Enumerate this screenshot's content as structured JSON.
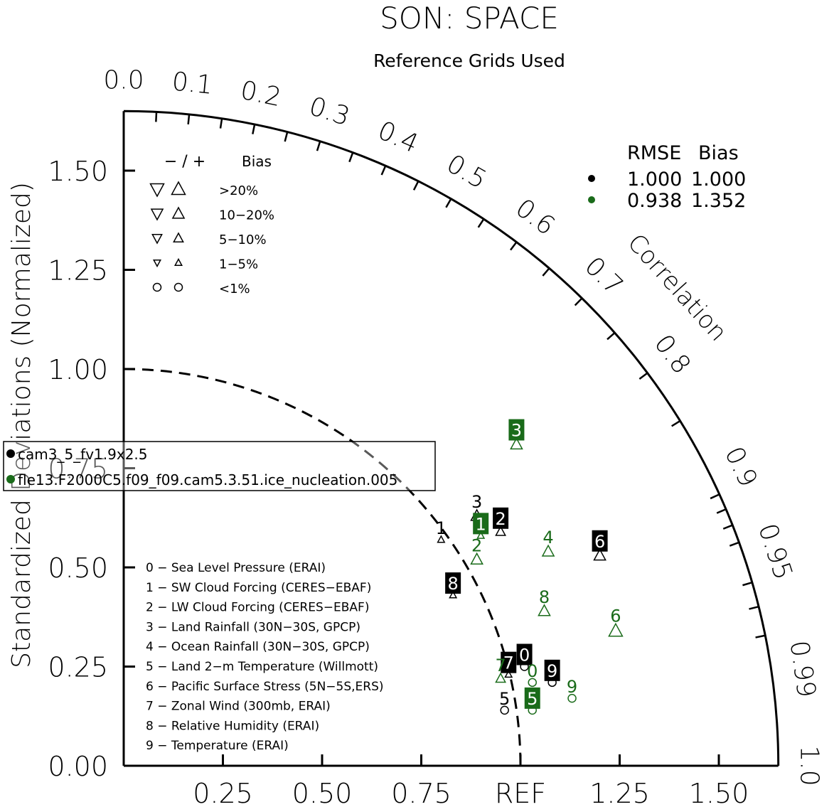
{
  "chart_data": {
    "type": "scatter",
    "subtype": "taylor-diagram",
    "title": "SON: SPACE",
    "subtitle": "Reference Grids Used",
    "ylabel": "Standardized Deviations (Normalized)",
    "arc_label": "Correlation",
    "ref_label": "REF",
    "x_ticks": [
      "0.25",
      "0.50",
      "0.75",
      "REF",
      "1.25",
      "1.50"
    ],
    "y_ticks": [
      "0.00",
      "0.25",
      "0.50",
      "0.75",
      "1.00",
      "1.25",
      "1.50"
    ],
    "corr_ticks": [
      "0.0",
      "0.1",
      "0.2",
      "0.3",
      "0.4",
      "0.5",
      "0.6",
      "0.7",
      "0.8",
      "0.9",
      "0.95",
      "0.99",
      "1.0"
    ],
    "std_max": 1.65,
    "grid": false,
    "bias_legend": {
      "header_sign": "− / +",
      "header_bias": "Bias",
      "rows": [
        {
          "label": ">20%",
          "symbol": "triangle",
          "level": 4
        },
        {
          "label": "10−20%",
          "symbol": "triangle",
          "level": 3
        },
        {
          "label": "5−10%",
          "symbol": "triangle",
          "level": 2
        },
        {
          "label": "1−5%",
          "symbol": "triangle",
          "level": 1
        },
        {
          "label": "<1%",
          "symbol": "circle",
          "level": 1
        }
      ]
    },
    "rmse_table": {
      "headers": [
        "RMSE",
        "Bias"
      ],
      "rows": [
        {
          "color": "#000000",
          "rmse": "1.000",
          "bias": "1.000"
        },
        {
          "color": "#1a6b1a",
          "rmse": "0.938",
          "bias": "1.352"
        }
      ]
    },
    "case_legend": [
      {
        "name": "cam3_5_fv1.9x2.5",
        "color": "#000000"
      },
      {
        "name": "fle13.F2000C5.f09_f09.cam5.3.51.ice_nucleation.005",
        "color": "#1a6b1a"
      }
    ],
    "variables": [
      "0 − Sea Level Pressure (ERAI)",
      "1 − SW Cloud Forcing (CERES−EBAF)",
      "2 − LW Cloud Forcing (CERES−EBAF)",
      "3 − Land Rainfall (30N−30S, GPCP)",
      "4 − Ocean Rainfall (30N−30S, GPCP)",
      "5 − Land 2−m Temperature (Willmott)",
      "6 − Pacific Surface Stress (5N−5S,ERS)",
      "7 − Zonal Wind (300mb, ERAI)",
      "8 − Relative Humidity (ERAI)",
      "9 − Temperature (ERAI)"
    ],
    "series": [
      {
        "name": "cam3_5_fv1.9x2.5",
        "color": "#000000",
        "points": [
          {
            "label": "0",
            "x": 1.01,
            "y": 0.25,
            "marker": "circle",
            "bias_level": 1,
            "boxed": true
          },
          {
            "label": "1",
            "x": 0.8,
            "y": 0.57,
            "marker": "triangle-up",
            "bias_level": 1,
            "boxed": false
          },
          {
            "label": "2",
            "x": 0.95,
            "y": 0.59,
            "marker": "triangle-up",
            "bias_level": 2,
            "boxed": true
          },
          {
            "label": "3",
            "x": 0.89,
            "y": 0.63,
            "marker": "triangle-up",
            "bias_level": 3,
            "boxed": false
          },
          {
            "label": "5",
            "x": 0.96,
            "y": 0.14,
            "marker": "circle",
            "bias_level": 1,
            "boxed": false
          },
          {
            "label": "6",
            "x": 1.2,
            "y": 0.53,
            "marker": "triangle-up",
            "bias_level": 3,
            "boxed": true
          },
          {
            "label": "7",
            "x": 0.97,
            "y": 0.23,
            "marker": "triangle-up",
            "bias_level": 1,
            "boxed": true
          },
          {
            "label": "8",
            "x": 0.83,
            "y": 0.43,
            "marker": "triangle-up",
            "bias_level": 1,
            "boxed": true
          },
          {
            "label": "9",
            "x": 1.08,
            "y": 0.21,
            "marker": "circle",
            "bias_level": 1,
            "boxed": true
          }
        ]
      },
      {
        "name": "fle13.F2000C5.f09_f09.cam5.3.51.ice_nucleation.005",
        "color": "#1a6b1a",
        "points": [
          {
            "label": "0",
            "x": 1.03,
            "y": 0.21,
            "marker": "circle",
            "bias_level": 1,
            "boxed": false
          },
          {
            "label": "1",
            "x": 0.9,
            "y": 0.58,
            "marker": "triangle-up",
            "bias_level": 1,
            "boxed": true
          },
          {
            "label": "2",
            "x": 0.89,
            "y": 0.52,
            "marker": "triangle-up",
            "bias_level": 3,
            "boxed": false
          },
          {
            "label": "3",
            "x": 0.99,
            "y": 0.81,
            "marker": "triangle-up",
            "bias_level": 3,
            "boxed": true
          },
          {
            "label": "4",
            "x": 1.07,
            "y": 0.54,
            "marker": "triangle-up",
            "bias_level": 3,
            "boxed": false
          },
          {
            "label": "5",
            "x": 1.03,
            "y": 0.14,
            "marker": "circle",
            "bias_level": 1,
            "boxed": true
          },
          {
            "label": "6",
            "x": 1.24,
            "y": 0.34,
            "marker": "triangle-up",
            "bias_level": 4,
            "boxed": false
          },
          {
            "label": "7",
            "x": 0.95,
            "y": 0.22,
            "marker": "triangle-up",
            "bias_level": 2,
            "boxed": false
          },
          {
            "label": "8",
            "x": 1.06,
            "y": 0.39,
            "marker": "triangle-up",
            "bias_level": 3,
            "boxed": false
          },
          {
            "label": "9",
            "x": 1.13,
            "y": 0.17,
            "marker": "circle",
            "bias_level": 1,
            "boxed": false
          }
        ]
      }
    ]
  }
}
